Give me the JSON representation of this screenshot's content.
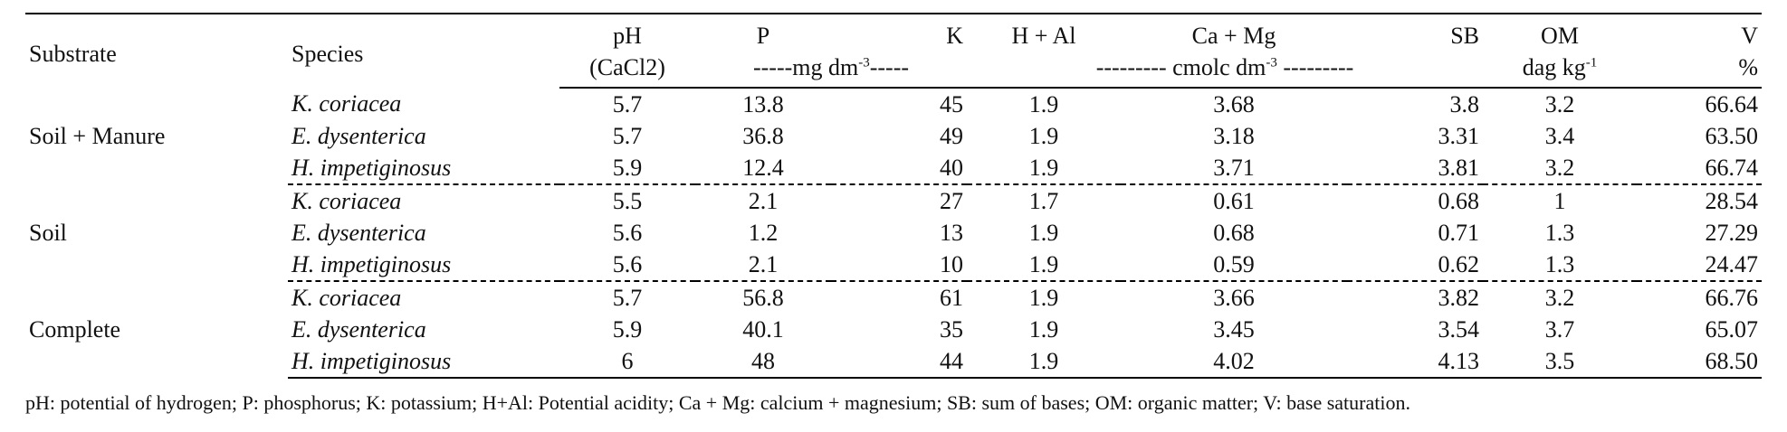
{
  "headers": {
    "substrate": "Substrate",
    "species": "Species",
    "ph": "pH",
    "ph_unit": "(CaCl2)",
    "p": "P",
    "k": "K",
    "pk_unit_pre": "-----mg dm",
    "pk_unit_sup": "-3",
    "pk_unit_post": "-----",
    "hal": "H + Al",
    "camg": "Ca + Mg",
    "cmol_unit_pre": "--------- cmolc dm",
    "cmol_unit_sup": "-3",
    "cmol_unit_post": " ---------",
    "sb": "SB",
    "om": "OM",
    "om_unit_pre": "dag kg",
    "om_unit_sup": "-1",
    "v": "V",
    "v_unit": "%"
  },
  "groups": [
    {
      "substrate": "Soil + Manure",
      "rows": [
        {
          "species": "K. coriacea",
          "ph": "5.7",
          "p": "13.8",
          "k": "45",
          "hal": "1.9",
          "camg": "3.68",
          "sb": "3.8",
          "om": "3.2",
          "v": "66.64"
        },
        {
          "species": "E. dysenterica",
          "ph": "5.7",
          "p": "36.8",
          "k": "49",
          "hal": "1.9",
          "camg": "3.18",
          "sb": "3.31",
          "om": "3.4",
          "v": "63.50"
        },
        {
          "species": "H. impetiginosus",
          "ph": "5.9",
          "p": "12.4",
          "k": "40",
          "hal": "1.9",
          "camg": "3.71",
          "sb": "3.81",
          "om": "3.2",
          "v": "66.74"
        }
      ]
    },
    {
      "substrate": "Soil",
      "rows": [
        {
          "species": "K. coriacea",
          "ph": "5.5",
          "p": "2.1",
          "k": "27",
          "hal": "1.7",
          "camg": "0.61",
          "sb": "0.68",
          "om": "1",
          "v": "28.54"
        },
        {
          "species": "E. dysenterica",
          "ph": "5.6",
          "p": "1.2",
          "k": "13",
          "hal": "1.9",
          "camg": "0.68",
          "sb": "0.71",
          "om": "1.3",
          "v": "27.29"
        },
        {
          "species": "H. impetiginosus",
          "ph": "5.6",
          "p": "2.1",
          "k": "10",
          "hal": "1.9",
          "camg": "0.59",
          "sb": "0.62",
          "om": "1.3",
          "v": "24.47"
        }
      ]
    },
    {
      "substrate": "Complete",
      "rows": [
        {
          "species": "K. coriacea",
          "ph": "5.7",
          "p": "56.8",
          "k": "61",
          "hal": "1.9",
          "camg": "3.66",
          "sb": "3.82",
          "om": "3.2",
          "v": "66.76"
        },
        {
          "species": "E. dysenterica",
          "ph": "5.9",
          "p": "40.1",
          "k": "35",
          "hal": "1.9",
          "camg": "3.45",
          "sb": "3.54",
          "om": "3.7",
          "v": "65.07"
        },
        {
          "species": "H. impetiginosus",
          "ph": "6",
          "p": "48",
          "k": "44",
          "hal": "1.9",
          "camg": "4.02",
          "sb": "4.13",
          "om": "3.5",
          "v": "68.50"
        }
      ]
    }
  ],
  "footnote": "pH: potential of hydrogen; P: phosphorus; K: potassium; H+Al: Potential acidity; Ca + Mg: calcium + magnesium; SB: sum of bases; OM: organic matter; V: base saturation."
}
